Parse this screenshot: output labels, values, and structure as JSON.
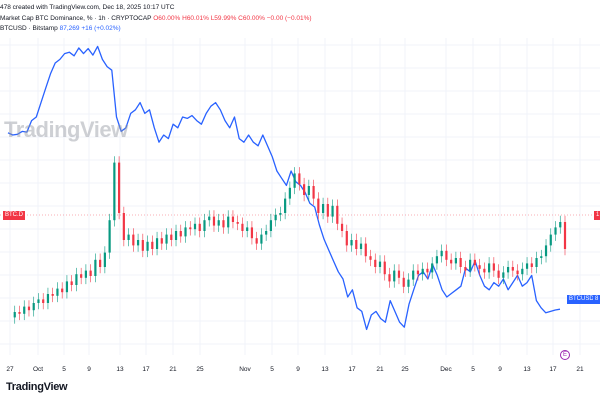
{
  "header": {
    "attribution_prefix": "478 ",
    "attribution": "created with TradingView.com, Dec 18, 2025 10:17 UTC",
    "series1_name": "Market Cap BTC Dominance, %",
    "series1_interval": "1h",
    "series1_source": "CRYPTOCAP",
    "series1_o": "O60.00%",
    "series1_h": "H60.01%",
    "series1_l": "L59.99%",
    "series1_c": "C60.00%",
    "series1_chg": "−0.00 (−0.01%)",
    "series2_name": "BTCUSD · Bitstamp",
    "series2_price": "87,269",
    "series2_chg": "+16 (+0.02%)"
  },
  "watermark": "TradingView",
  "footer": {
    "brand": "TradingView"
  },
  "event_marker": "E",
  "colors": {
    "dominance": "#f23645",
    "dominance_up": "#089981",
    "btcusd": "#2962ff",
    "grid": "#f0f3fa"
  },
  "tags": {
    "btcd_left": "BTC.D",
    "btcusd_right": "BTCUSD",
    "right_cut1": "1",
    "right_cut2": "8"
  },
  "chart_data": {
    "type": "line",
    "x_tick_labels": [
      "27",
      "Oct",
      "5",
      "9",
      "13",
      "17",
      "21",
      "25",
      "Nov",
      "5",
      "9",
      "13",
      "17",
      "21",
      "25",
      "Dec",
      "5",
      "9",
      "13",
      "17",
      "21"
    ],
    "series": [
      {
        "name": "BTCUSD · Bitstamp",
        "kind": "line",
        "color": "#2962ff",
        "values": [
          111.8,
          111.5,
          111.6,
          112.0,
          111.9,
          113.5,
          114.0,
          116.0,
          118.0,
          120.0,
          121.5,
          122.0,
          122.8,
          123.0,
          122.5,
          123.6,
          122.8,
          123.5,
          122.6,
          123.8,
          122.0,
          121.0,
          120.5,
          114.0,
          112.0,
          112.5,
          114.5,
          115.0,
          116.0,
          114.5,
          115.0,
          112.5,
          110.5,
          111.5,
          111.0,
          113.0,
          112.5,
          114.0,
          113.8,
          114.2,
          113.5,
          113.0,
          114.5,
          115.5,
          116.0,
          115.0,
          113.5,
          112.5,
          114.0,
          111.0,
          110.5,
          111.5,
          110.5,
          110.0,
          111.5,
          110.0,
          108.5,
          106.5,
          105.5,
          104.5,
          106.5,
          105.0,
          104.5,
          103.5,
          102.0,
          101.5,
          99.0,
          97.0,
          95.5,
          94.0,
          92.5,
          91.5,
          89.0,
          90.0,
          87.5,
          87.0,
          84.5,
          86.5,
          87.0,
          86.0,
          85.5,
          88.5,
          87.0,
          85.5,
          84.8,
          88.0,
          90.0,
          92.0,
          92.5,
          91.5,
          93.5,
          92.0,
          90.0,
          89.0,
          89.5,
          90.0,
          90.5,
          93.0,
          92.5,
          94.0,
          92.0,
          90.5,
          90.0,
          91.0,
          90.5,
          91.5,
          90.0,
          91.0,
          92.0,
          90.5,
          91.0,
          92.0,
          88.5,
          87.5,
          86.8,
          87.0,
          87.2,
          87.3
        ]
      },
      {
        "name": "Market Cap BTC Dominance, %",
        "kind": "candles",
        "color_down": "#f23645",
        "color_up": "#089981",
        "values": [
          56.2,
          56.5,
          56.4,
          56.8,
          56.6,
          57.0,
          57.2,
          57.0,
          57.5,
          57.4,
          57.8,
          57.6,
          58.2,
          58.0,
          58.6,
          58.4,
          58.8,
          58.5,
          59.4,
          59.0,
          59.8,
          61.6,
          64.8,
          62.0,
          60.5,
          60.8,
          60.2,
          60.5,
          59.9,
          60.4,
          60.0,
          60.6,
          60.3,
          60.8,
          60.5,
          61.0,
          60.7,
          61.2,
          61.1,
          61.4,
          61.0,
          61.6,
          61.8,
          61.3,
          61.6,
          61.2,
          61.8,
          61.5,
          61.4,
          61.0,
          61.2,
          60.6,
          60.3,
          60.8,
          61.0,
          61.6,
          61.9,
          62.0,
          62.8,
          63.4,
          64.2,
          63.6,
          63.0,
          63.5,
          62.8,
          62.0,
          62.5,
          61.8,
          62.4,
          61.4,
          61.0,
          60.2,
          60.5,
          60.0,
          60.3,
          59.6,
          59.4,
          59.0,
          59.3,
          58.6,
          58.2,
          58.8,
          58.4,
          57.9,
          58.3,
          58.8,
          58.6,
          58.9,
          58.7,
          59.2,
          59.6,
          59.9,
          59.4,
          59.2,
          59.5,
          59.0,
          58.8,
          59.4,
          59.1,
          58.9,
          58.7,
          59.2,
          58.8,
          58.4,
          58.7,
          59.0,
          58.8,
          58.6,
          58.9,
          59.2,
          59.0,
          59.5,
          59.6,
          60.2,
          60.8,
          61.2,
          61.5,
          60.0
        ]
      }
    ],
    "current": {
      "btcusd": "87,269",
      "dominance": "60.00%"
    },
    "grid": true,
    "legend": "top-left"
  }
}
